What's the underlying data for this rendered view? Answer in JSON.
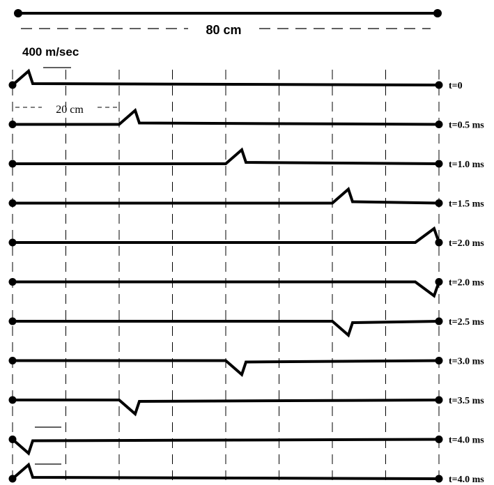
{
  "header": {
    "length_label": "80 cm",
    "speed_label": "400 m/sec",
    "spacing_label": "20 cm"
  },
  "string_length_cm": 80,
  "grid_spacing_cm": 10,
  "frames": [
    {
      "time_label": "t=0",
      "pulse_position_cm": 0,
      "pulse": "up"
    },
    {
      "time_label": "t=0.5 ms",
      "pulse_position_cm": 20,
      "pulse": "up"
    },
    {
      "time_label": "t=1.0 ms",
      "pulse_position_cm": 40,
      "pulse": "up"
    },
    {
      "time_label": "t=1.5 ms",
      "pulse_position_cm": 60,
      "pulse": "up"
    },
    {
      "time_label": "t=2.0 ms",
      "pulse_position_cm": 80,
      "pulse": "up"
    },
    {
      "time_label": "t=2.0 ms",
      "pulse_position_cm": 80,
      "pulse": "down"
    },
    {
      "time_label": "t=2.5 ms",
      "pulse_position_cm": 60,
      "pulse": "down"
    },
    {
      "time_label": "t=3.0 ms",
      "pulse_position_cm": 40,
      "pulse": "down"
    },
    {
      "time_label": "t=3.5 ms",
      "pulse_position_cm": 20,
      "pulse": "down"
    },
    {
      "time_label": "t=4.0 ms",
      "pulse_position_cm": 0,
      "pulse": "down"
    },
    {
      "time_label": "t=4.0 ms",
      "pulse_position_cm": 0,
      "pulse": "up"
    }
  ]
}
